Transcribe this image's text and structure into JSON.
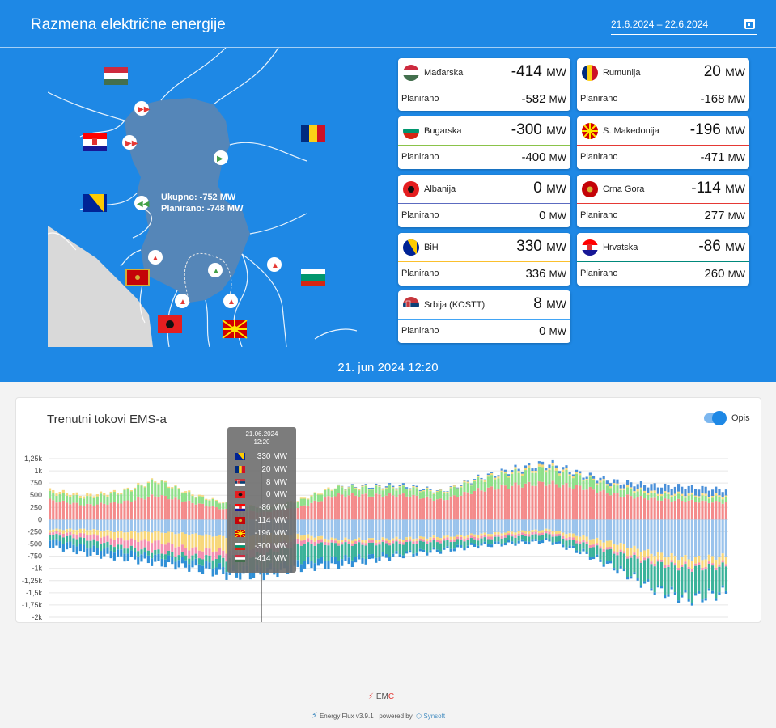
{
  "header": {
    "title": "Razmena električne energije",
    "date_range": "21.6.2024 – 22.6.2024",
    "calendar_icon": "calendar-icon"
  },
  "map": {
    "total_label": "Ukupno: -752 MW",
    "planned_label": "Planirano: -748 MW"
  },
  "cards": [
    {
      "id": "hu",
      "name": "Mađarska",
      "value": "-414",
      "planned": "-582",
      "color": "#e53935"
    },
    {
      "id": "ro",
      "name": "Rumunija",
      "value": "20",
      "planned": "-168",
      "color": "#fb8c00"
    },
    {
      "id": "bg",
      "name": "Bugarska",
      "value": "-300",
      "planned": "-400",
      "color": "#8bc34a"
    },
    {
      "id": "mk",
      "name": "S. Makedonija",
      "value": "-196",
      "planned": "-471",
      "color": "#e53935"
    },
    {
      "id": "al",
      "name": "Albanija",
      "value": "0",
      "planned": "0",
      "color": "#5c6bc0"
    },
    {
      "id": "me",
      "name": "Crna Gora",
      "value": "-114",
      "planned": "277",
      "color": "#e53935"
    },
    {
      "id": "ba",
      "name": "BiH",
      "value": "330",
      "planned": "336",
      "color": "#fbc02d"
    },
    {
      "id": "hr",
      "name": "Hrvatska",
      "value": "-86",
      "planned": "260",
      "color": "#00897b"
    },
    {
      "id": "rs",
      "name": "Srbija (KOSTT)",
      "value": "8",
      "planned": "0",
      "color": "#42a5f5"
    }
  ],
  "unit": "MW",
  "planned_label": "Planirano",
  "timestamp": "21. jun 2024 12:20",
  "chart": {
    "title": "Trenutni tokovi EMS-a",
    "toggle_label": "Opis",
    "tooltip_date": "21.06.2024",
    "tooltip_time": "12:20",
    "tooltip_rows": [
      {
        "flag": "ba",
        "value": "330 MW"
      },
      {
        "flag": "ro",
        "value": "20 MW"
      },
      {
        "flag": "rs",
        "value": "8 MW"
      },
      {
        "flag": "al",
        "value": "0 MW"
      },
      {
        "flag": "hr",
        "value": "-86 MW"
      },
      {
        "flag": "me",
        "value": "-114 MW"
      },
      {
        "flag": "mk",
        "value": "-196 MW"
      },
      {
        "flag": "bg",
        "value": "-300 MW"
      },
      {
        "flag": "hu",
        "value": "-414 MW"
      }
    ]
  },
  "chart_data": {
    "type": "bar",
    "stacked": true,
    "ylim": [
      -2000,
      1250
    ],
    "yticks": [
      "1,25k",
      "1k",
      "750",
      "500",
      "250",
      "0",
      "-250",
      "-500",
      "-750",
      "-1k",
      "-1,25k",
      "-1,5k",
      "-1,75k",
      "-2k"
    ],
    "ytick_values": [
      1250,
      1000,
      750,
      500,
      250,
      0,
      -250,
      -500,
      -750,
      -1000,
      -1250,
      -1500,
      -1750,
      -2000
    ],
    "series": [
      {
        "flag": "ba",
        "color": "#f48b8b",
        "values": [
          400,
          300,
          350,
          500,
          350,
          200,
          150,
          250,
          500,
          500,
          500,
          400,
          600,
          700,
          750,
          650,
          500,
          420,
          380,
          350
        ]
      },
      {
        "flag": "bg",
        "color": "#8fe08a",
        "values": [
          150,
          150,
          200,
          300,
          150,
          120,
          100,
          130,
          150,
          150,
          150,
          150,
          200,
          250,
          300,
          200,
          150,
          100,
          100,
          100
        ]
      },
      {
        "flag": "ro",
        "color": "#f7d77a",
        "values": [
          50,
          50,
          30,
          20,
          30,
          10,
          10,
          20,
          20,
          20,
          20,
          20,
          30,
          40,
          50,
          30,
          40,
          40,
          40,
          40
        ]
      },
      {
        "flag": "rs",
        "color": "#4a90d9",
        "values": [
          0,
          0,
          0,
          0,
          0,
          0,
          0,
          0,
          0,
          20,
          30,
          10,
          20,
          40,
          60,
          40,
          80,
          140,
          150,
          120
        ]
      },
      {
        "flag": "hr",
        "color": "#9ac3ec",
        "values": [
          -200,
          -200,
          -250,
          -250,
          -300,
          -350,
          -300,
          -300,
          -400,
          -400,
          -380,
          -350,
          -300,
          -250,
          -200,
          -350,
          -500,
          -700,
          -800,
          -750
        ]
      },
      {
        "flag": "me",
        "color": "#f7d77a",
        "values": [
          -50,
          -100,
          -150,
          -200,
          -300,
          -300,
          -250,
          -100,
          -50,
          -50,
          -50,
          -50,
          -50,
          -50,
          -50,
          -100,
          -150,
          -150,
          -150,
          -150
        ]
      },
      {
        "flag": "mk",
        "color": "#f48fb1",
        "values": [
          -50,
          -100,
          -150,
          -200,
          -150,
          -150,
          -150,
          -100,
          -50,
          -50,
          -50,
          -50,
          -50,
          -50,
          -50,
          -50,
          -50,
          -50,
          -50,
          -50
        ]
      },
      {
        "flag": "hu",
        "color": "#3bb39a",
        "values": [
          -100,
          -150,
          -100,
          -100,
          -100,
          -200,
          -300,
          -350,
          -300,
          -250,
          -200,
          -150,
          -100,
          -100,
          -100,
          -150,
          -300,
          -500,
          -600,
          -500
        ]
      },
      {
        "flag": "al",
        "color": "#2f8fd6",
        "values": [
          -150,
          -150,
          -150,
          -150,
          -150,
          -150,
          -150,
          -150,
          -150,
          -100,
          -50,
          -50,
          -50,
          -50,
          -50,
          -50,
          -50,
          -50,
          -50,
          -50
        ]
      }
    ]
  },
  "footer": {
    "logo_text_em": "EM",
    "logo_text_c": "C",
    "version": "Energy Flux v3.9.1",
    "powered_by": "powered by",
    "vendor": "Synsoft"
  }
}
